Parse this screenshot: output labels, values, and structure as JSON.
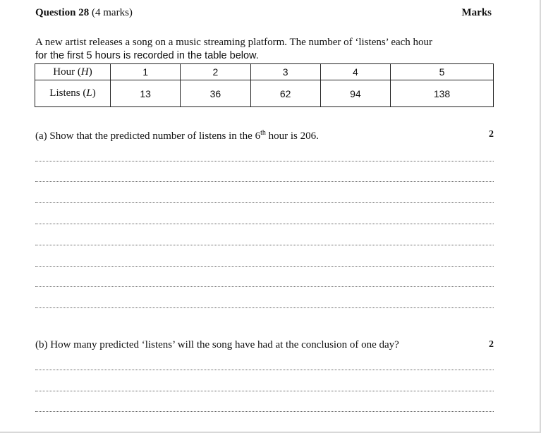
{
  "header": {
    "question_number": "Question 28",
    "question_marks": " (4 marks)",
    "marks_label": "Marks"
  },
  "intro": {
    "line1": "A new artist releases a song on a music streaming platform. The number of ‘listens’ each hour",
    "line2": "for the first 5 hours is recorded in the table below."
  },
  "table": {
    "row1_label": "Hour",
    "row1_var": "H",
    "row2_label": "Listens",
    "row2_var": "L",
    "hours": [
      "1",
      "2",
      "3",
      "4",
      "5"
    ],
    "listens": [
      "13",
      "36",
      "62",
      "94",
      "138"
    ]
  },
  "part_a": {
    "text_before": "(a) Show that the predicted number of listens in the 6",
    "superscript": "th",
    "text_after": " hour is 206.",
    "marks": "2"
  },
  "part_b": {
    "text": "(b) How many predicted ‘listens’ will the song have had at the conclusion of one day?",
    "marks": "2"
  }
}
